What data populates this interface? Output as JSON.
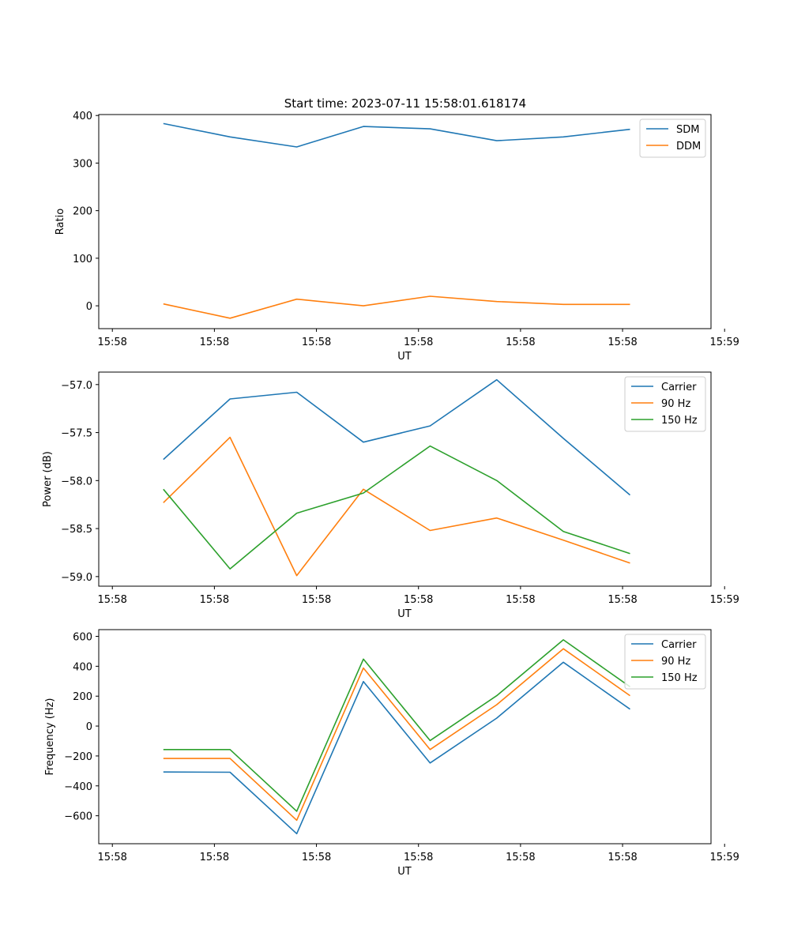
{
  "figure_title": "Start time: 2023-07-11 15:58:01.618174",
  "colors": {
    "blue": "#1f77b4",
    "orange": "#ff7f0e",
    "green": "#2ca02c"
  },
  "chart_data": [
    {
      "type": "line",
      "xlabel": "UT",
      "ylabel": "Ratio",
      "xlim": [
        -0.2,
        8.8
      ],
      "ylim": [
        -48,
        402
      ],
      "x_ticks": [
        0,
        1.5,
        3,
        4.5,
        6,
        7.5,
        9
      ],
      "x_tick_labels": [
        "15:58",
        "15:58",
        "15:58",
        "15:58",
        "15:58",
        "15:58",
        "15:59"
      ],
      "y_ticks": [
        0,
        100,
        200,
        300,
        400
      ],
      "y_tick_labels": [
        "0",
        "100",
        "200",
        "300",
        "400"
      ],
      "x": [
        0.75,
        1.73,
        2.71,
        3.69,
        4.67,
        5.65,
        6.63,
        7.61
      ],
      "legend_position": "upper right",
      "series": [
        {
          "name": "SDM",
          "color": "#1f77b4",
          "values": [
            383,
            355,
            334,
            377,
            372,
            347,
            355,
            371
          ]
        },
        {
          "name": "DDM",
          "color": "#ff7f0e",
          "values": [
            4,
            -26,
            14,
            0,
            20,
            9,
            3,
            3
          ]
        }
      ]
    },
    {
      "type": "line",
      "xlabel": "UT",
      "ylabel": "Power (dB)",
      "xlim": [
        -0.2,
        8.8
      ],
      "ylim": [
        -59.1,
        -56.87
      ],
      "x_ticks": [
        0,
        1.5,
        3,
        4.5,
        6,
        7.5,
        9
      ],
      "x_tick_labels": [
        "15:58",
        "15:58",
        "15:58",
        "15:58",
        "15:58",
        "15:58",
        "15:59"
      ],
      "y_ticks": [
        -59.0,
        -58.5,
        -58.0,
        -57.5,
        -57.0
      ],
      "y_tick_labels": [
        "−59.0",
        "−58.5",
        "−58.0",
        "−57.5",
        "−57.0"
      ],
      "x": [
        0.75,
        1.73,
        2.71,
        3.69,
        4.67,
        5.65,
        6.63,
        7.61
      ],
      "legend_position": "upper right",
      "series": [
        {
          "name": "Carrier",
          "color": "#1f77b4",
          "values": [
            -57.78,
            -57.15,
            -57.08,
            -57.6,
            -57.43,
            -56.95,
            -57.56,
            -58.15
          ]
        },
        {
          "name": "90 Hz",
          "color": "#ff7f0e",
          "values": [
            -58.23,
            -57.55,
            -58.99,
            -58.09,
            -58.52,
            -58.39,
            -58.62,
            -58.86
          ]
        },
        {
          "name": "150 Hz",
          "color": "#2ca02c",
          "values": [
            -58.09,
            -58.92,
            -58.34,
            -58.13,
            -57.64,
            -58.0,
            -58.53,
            -58.76
          ]
        }
      ]
    },
    {
      "type": "line",
      "xlabel": "UT",
      "ylabel": "Frequency (Hz)",
      "xlim": [
        -0.2,
        8.8
      ],
      "ylim": [
        -787,
        645
      ],
      "x_ticks": [
        0,
        1.5,
        3,
        4.5,
        6,
        7.5,
        9
      ],
      "x_tick_labels": [
        "15:58",
        "15:58",
        "15:58",
        "15:58",
        "15:58",
        "15:58",
        "15:59"
      ],
      "y_ticks": [
        -600,
        -400,
        -200,
        0,
        200,
        400,
        600
      ],
      "y_tick_labels": [
        "−600",
        "−400",
        "−200",
        "0",
        "200",
        "400",
        "600"
      ],
      "x": [
        0.75,
        1.73,
        2.71,
        3.69,
        4.67,
        5.65,
        6.63,
        7.61
      ],
      "legend_position": "upper right",
      "series": [
        {
          "name": "Carrier",
          "color": "#1f77b4",
          "values": [
            -307,
            -309,
            -720,
            298,
            -247,
            53,
            427,
            113
          ]
        },
        {
          "name": "90 Hz",
          "color": "#ff7f0e",
          "values": [
            -217,
            -217,
            -630,
            388,
            -157,
            143,
            517,
            203
          ]
        },
        {
          "name": "150 Hz",
          "color": "#2ca02c",
          "values": [
            -157,
            -157,
            -570,
            448,
            -97,
            203,
            577,
            263
          ]
        }
      ]
    }
  ]
}
